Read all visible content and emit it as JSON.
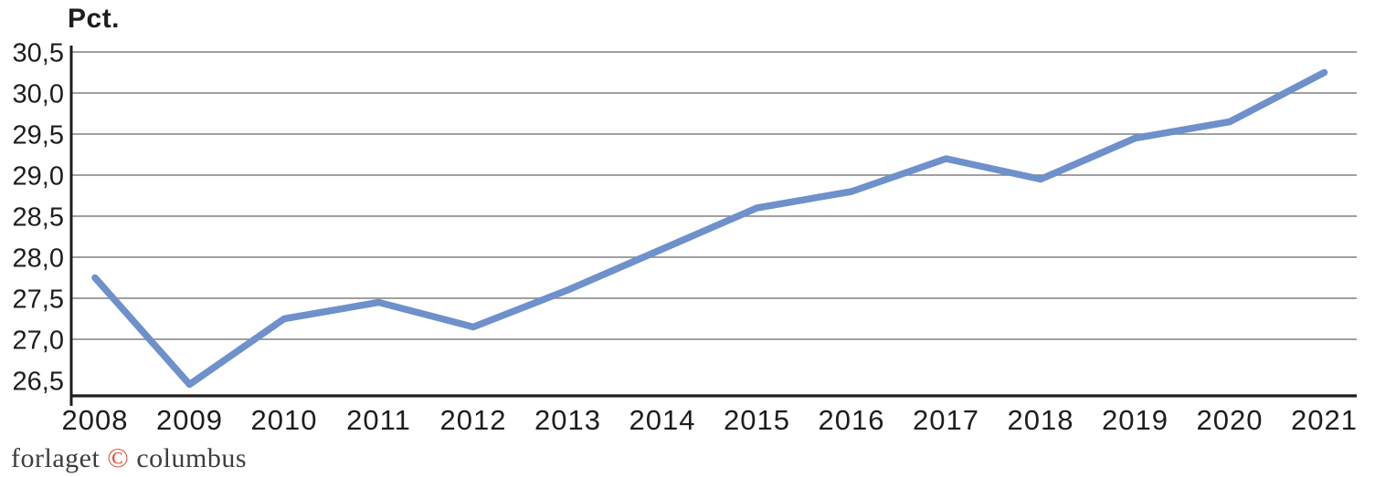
{
  "page": {
    "background_color": "#ffffff"
  },
  "header": {
    "axis_unit_label": "Pct."
  },
  "footer": {
    "prefix": "forlaget ",
    "copyright_symbol": "©",
    "suffix": " columbus",
    "text_color": "#3d3d3d",
    "copyright_color": "#e04e39"
  },
  "chart_data": {
    "type": "line",
    "title": "",
    "ylabel": "Pct.",
    "xlabel": "",
    "categories": [
      "2008",
      "2009",
      "2010",
      "2011",
      "2012",
      "2013",
      "2014",
      "2015",
      "2016",
      "2017",
      "2018",
      "2019",
      "2020",
      "2021"
    ],
    "series": [
      {
        "name": "Pct.",
        "values": [
          27.75,
          26.45,
          27.25,
          27.45,
          27.15,
          27.6,
          28.1,
          28.6,
          28.8,
          29.2,
          28.95,
          29.45,
          29.65,
          30.25
        ]
      }
    ],
    "ylim": [
      26.3,
      30.5
    ],
    "y_tick_labels": [
      "30,5",
      "30,0",
      "29,5",
      "29,0",
      "28,5",
      "28,0",
      "27,5",
      "27,0",
      "26,5"
    ],
    "y_tick_values": [
      30.5,
      30.0,
      29.5,
      29.0,
      28.5,
      28.0,
      27.5,
      27.0,
      26.5
    ],
    "gridline_values": [
      30.5,
      30.0,
      29.5,
      29.0,
      28.5,
      28.0,
      27.5,
      27.0
    ],
    "grid": "horizontal",
    "legend_position": "none",
    "decimal_style": "comma",
    "colors": {
      "line": "#6e90cb",
      "gridline": "#808080",
      "axis": "#1d1d1b",
      "tick_text": "#1d1d1b"
    }
  }
}
